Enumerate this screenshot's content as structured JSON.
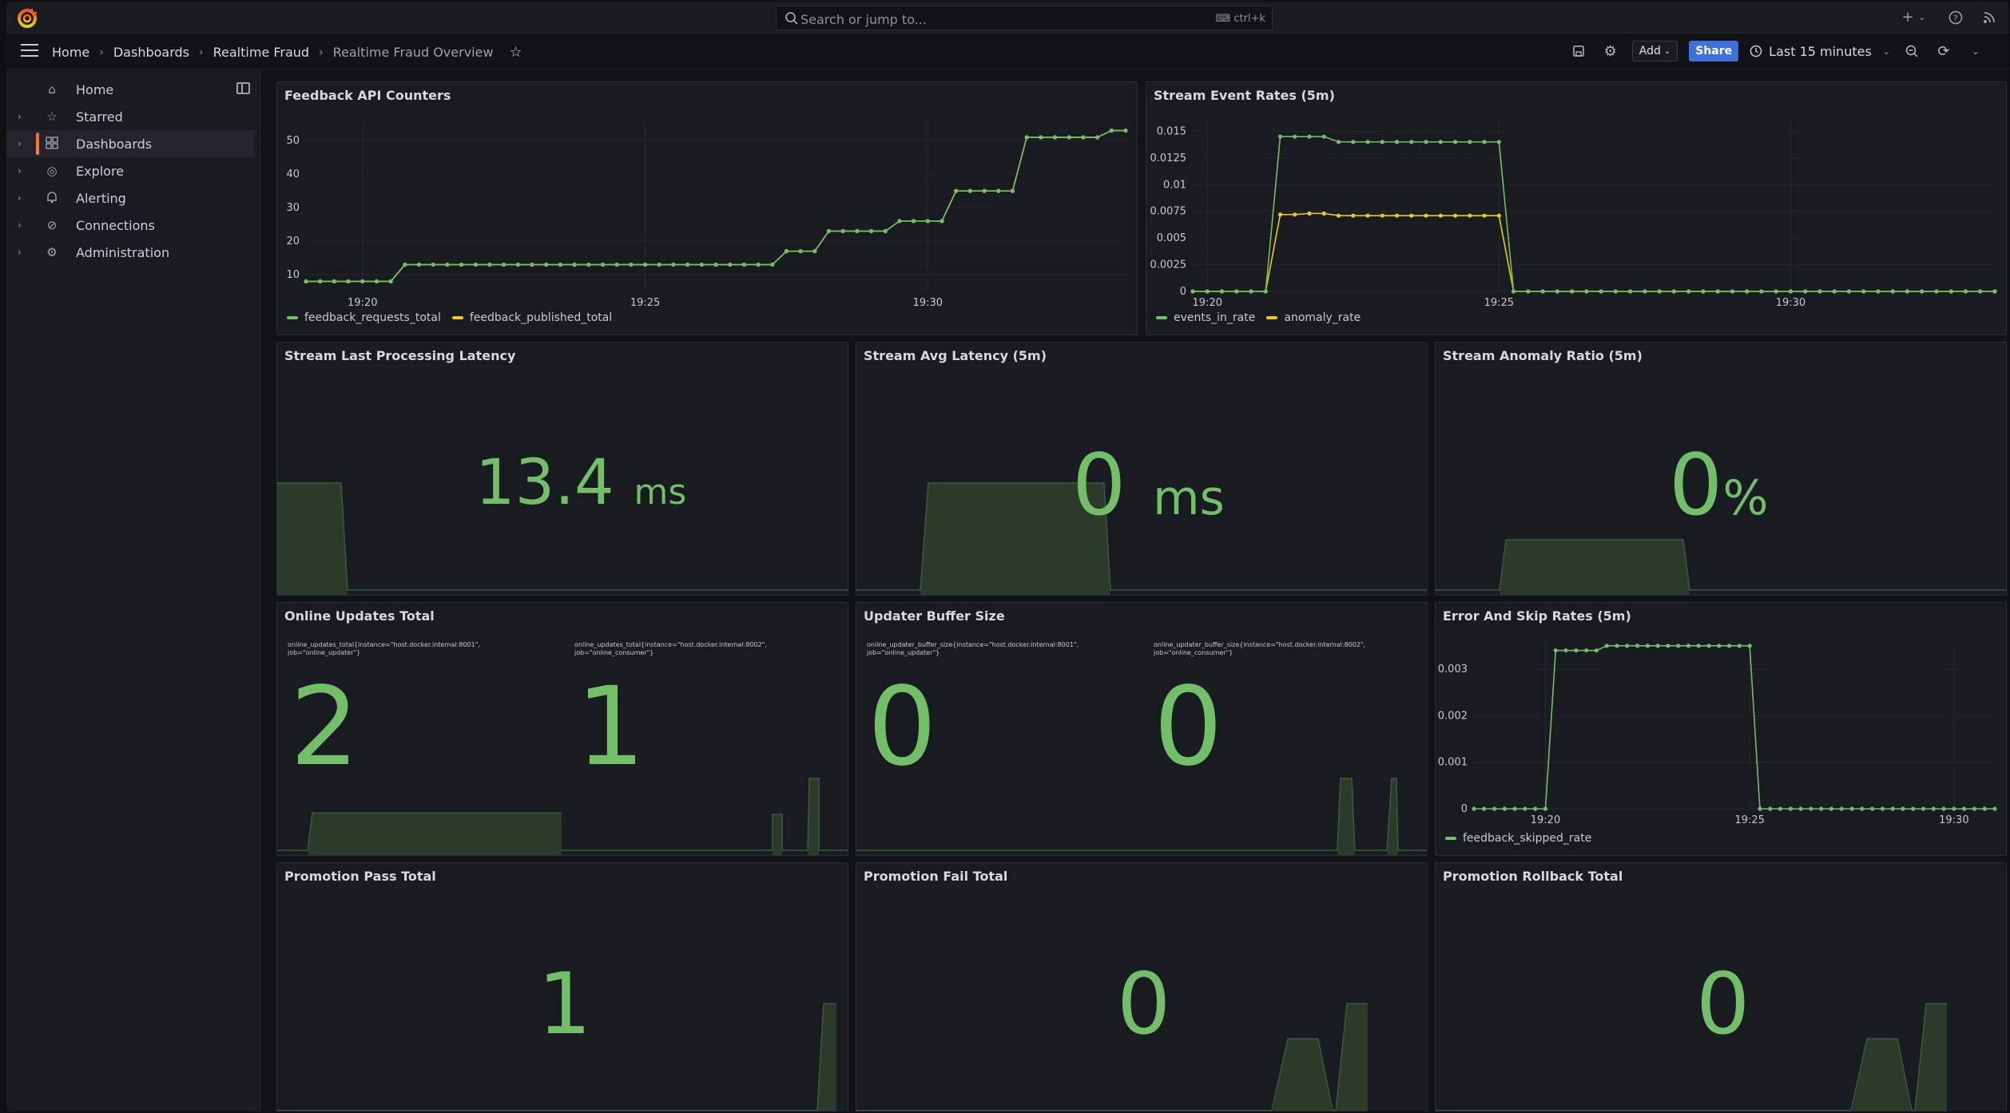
{
  "topbar": {
    "search_placeholder": "Search or jump to...",
    "search_shortcut": "ctrl+k",
    "icons": [
      "plus-icon",
      "help-icon",
      "news-icon"
    ]
  },
  "navbar": {
    "breadcrumbs": [
      "Home",
      "Dashboards",
      "Realtime Fraud",
      "Realtime Fraud Overview"
    ],
    "add_label": "Add",
    "share_label": "Share",
    "time_range": "Last 15 minutes"
  },
  "sidebar": {
    "items": [
      {
        "label": "Home",
        "icon": "home-icon"
      },
      {
        "label": "Starred",
        "icon": "star-icon"
      },
      {
        "label": "Dashboards",
        "icon": "apps-icon"
      },
      {
        "label": "Explore",
        "icon": "compass-icon"
      },
      {
        "label": "Alerting",
        "icon": "bell-icon"
      },
      {
        "label": "Connections",
        "icon": "link-icon"
      },
      {
        "label": "Administration",
        "icon": "cog-icon"
      }
    ]
  },
  "colors": {
    "green": "#73bf69",
    "yellow": "#f2cc0c",
    "accent": "#3d71d9",
    "brand": "#f55f3e"
  },
  "panels": {
    "feedback": {
      "title": "Feedback API Counters"
    },
    "stream_rates": {
      "title": "Stream Event Rates (5m)"
    },
    "last_latency": {
      "title": "Stream Last Processing Latency",
      "value": "13.4",
      "unit": "ms"
    },
    "avg_latency": {
      "title": "Stream Avg Latency (5m)",
      "value": "0",
      "unit": "ms"
    },
    "anomaly_ratio": {
      "title": "Stream Anomaly Ratio (5m)",
      "value": "0",
      "unit": "%"
    },
    "online_updates": {
      "title": "Online Updates Total",
      "items": [
        {
          "label": "online_updates_total{instance=\"host.docker.internal:8001\", job=\"online_updater\"}",
          "value": "2"
        },
        {
          "label": "online_updates_total{instance=\"host.docker.internal:8002\", job=\"online_consumer\"}",
          "value": "1"
        }
      ]
    },
    "buffer_size": {
      "title": "Updater Buffer Size",
      "items": [
        {
          "label": "online_updater_buffer_size{instance=\"host.docker.internal:8001\", job=\"online_updater\"}",
          "value": "0"
        },
        {
          "label": "online_updater_buffer_size{instance=\"host.docker.internal:8002\", job=\"online_consumer\"}",
          "value": "0"
        }
      ]
    },
    "error_skip": {
      "title": "Error And Skip Rates (5m)"
    },
    "promo_pass": {
      "title": "Promotion Pass Total",
      "value": "1"
    },
    "promo_fail": {
      "title": "Promotion Fail Total",
      "value": "0"
    },
    "promo_rollback": {
      "title": "Promotion Rollback Total",
      "value": "0"
    }
  },
  "chart_data": [
    {
      "type": "line",
      "title": "Feedback API Counters",
      "x_ticks": [
        "19:20",
        "19:25",
        "19:30"
      ],
      "y_ticks": [
        10,
        20,
        30,
        40,
        50
      ],
      "ylim": [
        5,
        56
      ],
      "x": [
        "19:19:00",
        "19:19:15",
        "19:19:30",
        "19:19:45",
        "19:20:00",
        "19:20:15",
        "19:20:30",
        "19:20:45",
        "19:21:00",
        "19:21:15",
        "19:21:30",
        "19:21:45",
        "19:22:00",
        "19:22:15",
        "19:22:30",
        "19:22:45",
        "19:23:00",
        "19:23:15",
        "19:23:30",
        "19:23:45",
        "19:24:00",
        "19:24:15",
        "19:24:30",
        "19:24:45",
        "19:25:00",
        "19:25:15",
        "19:25:30",
        "19:25:45",
        "19:26:00",
        "19:26:15",
        "19:26:30",
        "19:26:45",
        "19:27:00",
        "19:27:15",
        "19:27:30",
        "19:27:45",
        "19:28:00",
        "19:28:15",
        "19:28:30",
        "19:28:45",
        "19:29:00",
        "19:29:15",
        "19:29:30",
        "19:29:45",
        "19:30:00",
        "19:30:15",
        "19:30:30",
        "19:30:45",
        "19:31:00",
        "19:31:15",
        "19:31:30",
        "19:31:45",
        "19:32:00",
        "19:32:15",
        "19:32:30",
        "19:32:45",
        "19:33:00",
        "19:33:15",
        "19:33:30"
      ],
      "series": [
        {
          "name": "feedback_requests_total",
          "color": "#73bf69",
          "values": [
            8,
            8,
            8,
            8,
            8,
            8,
            8,
            13,
            13,
            13,
            13,
            13,
            13,
            13,
            13,
            13,
            13,
            13,
            13,
            13,
            13,
            13,
            13,
            13,
            13,
            13,
            13,
            13,
            13,
            13,
            13,
            13,
            13,
            13,
            17,
            17,
            17,
            23,
            23,
            23,
            23,
            23,
            26,
            26,
            26,
            26,
            35,
            35,
            35,
            35,
            35,
            51,
            51,
            51,
            51,
            51,
            51,
            53,
            53
          ]
        },
        {
          "name": "feedback_published_total",
          "color": "#f2cc0c",
          "values": [
            8,
            8,
            8,
            8,
            8,
            8,
            8,
            13,
            13,
            13,
            13,
            13,
            13,
            13,
            13,
            13,
            13,
            13,
            13,
            13,
            13,
            13,
            13,
            13,
            13,
            13,
            13,
            13,
            13,
            13,
            13,
            13,
            13,
            13,
            17,
            17,
            17,
            23,
            23,
            23,
            23,
            23,
            26,
            26,
            26,
            26,
            35,
            35,
            35,
            35,
            35,
            51,
            51,
            51,
            51,
            51,
            51,
            53,
            53
          ]
        }
      ]
    },
    {
      "type": "line",
      "title": "Stream Event Rates (5m)",
      "x_ticks": [
        "19:20",
        "19:25",
        "19:30"
      ],
      "y_ticks": [
        "0",
        "0.0025",
        "0.005",
        "0.0075",
        "0.01",
        "0.0125",
        "0.015"
      ],
      "ylim": [
        0,
        0.016
      ],
      "x": [
        "19:19:45",
        "19:20:00",
        "19:20:15",
        "19:20:30",
        "19:20:45",
        "19:21:00",
        "19:21:15",
        "19:21:30",
        "19:21:45",
        "19:22:00",
        "19:22:15",
        "19:22:30",
        "19:22:45",
        "19:23:00",
        "19:23:15",
        "19:23:30",
        "19:23:45",
        "19:24:00",
        "19:24:15",
        "19:24:30",
        "19:24:45",
        "19:25:00",
        "19:25:15",
        "19:25:30",
        "19:25:45",
        "19:26:00",
        "19:26:15",
        "19:26:30",
        "19:26:45",
        "19:27:00",
        "19:27:15",
        "19:27:30",
        "19:27:45",
        "19:28:00",
        "19:28:15",
        "19:28:30",
        "19:28:45",
        "19:29:00",
        "19:29:15",
        "19:29:30",
        "19:29:45",
        "19:30:00",
        "19:30:15",
        "19:30:30",
        "19:30:45",
        "19:31:00",
        "19:31:15",
        "19:31:30",
        "19:31:45",
        "19:32:00",
        "19:32:15",
        "19:32:30",
        "19:32:45",
        "19:33:00",
        "19:33:15",
        "19:33:30"
      ],
      "series": [
        {
          "name": "events_in_rate",
          "color": "#73bf69",
          "values": [
            0,
            0,
            0,
            0,
            0,
            0,
            0.0145,
            0.0145,
            0.0145,
            0.0145,
            0.014,
            0.014,
            0.014,
            0.014,
            0.014,
            0.014,
            0.014,
            0.014,
            0.014,
            0.014,
            0.014,
            0.014,
            0,
            0,
            0,
            0,
            0,
            0,
            0,
            0,
            0,
            0,
            0,
            0,
            0,
            0,
            0,
            0,
            0,
            0,
            0,
            0,
            0,
            0,
            0,
            0,
            0,
            0,
            0,
            0,
            0,
            0,
            0,
            0,
            0,
            0
          ]
        },
        {
          "name": "anomaly_rate",
          "color": "#f2cc0c",
          "values": [
            0,
            0,
            0,
            0,
            0,
            0,
            0.0072,
            0.0072,
            0.0073,
            0.0073,
            0.0071,
            0.0071,
            0.0071,
            0.0071,
            0.0071,
            0.0071,
            0.0071,
            0.0071,
            0.0071,
            0.0071,
            0.0071,
            0.0071,
            0,
            0,
            0,
            0,
            0,
            0,
            0,
            0,
            0,
            0,
            0,
            0,
            0,
            0,
            0,
            0,
            0,
            0,
            0,
            0,
            0,
            0,
            0,
            0,
            0,
            0,
            0,
            0,
            0,
            0,
            0,
            0,
            0,
            0
          ]
        }
      ]
    },
    {
      "type": "line",
      "title": "Error And Skip Rates (5m)",
      "x_ticks": [
        "19:20",
        "19:25",
        "19:30"
      ],
      "y_ticks": [
        "0",
        "0.001",
        "0.002",
        "0.003"
      ],
      "ylim": [
        0,
        0.0036
      ],
      "x": [
        "19:18:15",
        "19:18:30",
        "19:18:45",
        "19:19:00",
        "19:19:15",
        "19:19:30",
        "19:19:45",
        "19:20:00",
        "19:20:15",
        "19:20:30",
        "19:20:45",
        "19:21:00",
        "19:21:15",
        "19:21:30",
        "19:21:45",
        "19:22:00",
        "19:22:15",
        "19:22:30",
        "19:22:45",
        "19:23:00",
        "19:23:15",
        "19:23:30",
        "19:23:45",
        "19:24:00",
        "19:24:15",
        "19:24:30",
        "19:24:45",
        "19:25:00",
        "19:25:15",
        "19:25:30",
        "19:25:45",
        "19:26:00",
        "19:26:15",
        "19:26:30",
        "19:26:45",
        "19:27:00",
        "19:27:15",
        "19:27:30",
        "19:27:45",
        "19:28:00",
        "19:28:15",
        "19:28:30",
        "19:28:45",
        "19:29:00",
        "19:29:15",
        "19:29:30",
        "19:29:45",
        "19:30:00",
        "19:30:15",
        "19:30:30",
        "19:30:45",
        "19:31:00"
      ],
      "series": [
        {
          "name": "feedback_skipped_rate",
          "color": "#73bf69",
          "values": [
            0,
            0,
            0,
            0,
            0,
            0,
            0,
            0,
            0.0034,
            0.0034,
            0.0034,
            0.0034,
            0.0034,
            0.0035,
            0.0035,
            0.0035,
            0.0035,
            0.0035,
            0.0035,
            0.0035,
            0.0035,
            0.0035,
            0.0035,
            0.0035,
            0.0035,
            0.0035,
            0.0035,
            0.0035,
            0,
            0,
            0,
            0,
            0,
            0,
            0,
            0,
            0,
            0,
            0,
            0,
            0,
            0,
            0,
            0,
            0,
            0,
            0,
            0,
            0,
            0,
            0,
            0
          ]
        }
      ]
    }
  ]
}
